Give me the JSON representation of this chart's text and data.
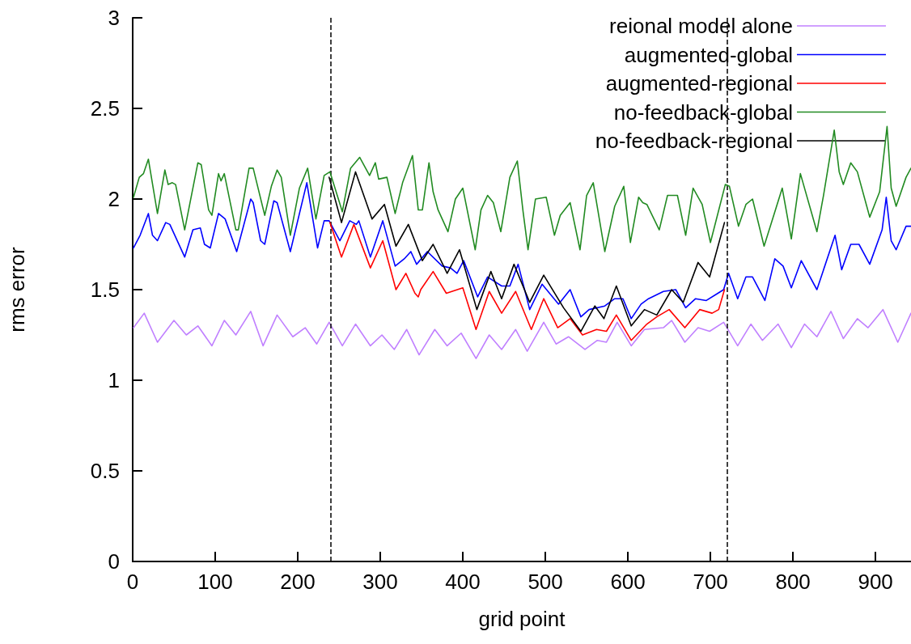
{
  "chart_data": {
    "type": "line",
    "xlabel": "grid point",
    "ylabel": "rms error",
    "xlim": [
      0,
      943
    ],
    "xticks": [
      0,
      100,
      200,
      300,
      400,
      500,
      600,
      700,
      800,
      900
    ],
    "ylim": [
      0,
      3
    ],
    "yticks": [
      0,
      0.5,
      1,
      1.5,
      2,
      2.5,
      3
    ],
    "grid": false,
    "legend": "top right",
    "marker": "none",
    "line_style": "solid",
    "ref_lines": [
      {
        "axis": "x",
        "value": 240,
        "label": null,
        "color": "#000000",
        "line_style": "dashed"
      },
      {
        "axis": "x",
        "value": 720,
        "label": null,
        "color": "#000000",
        "line_style": "dashed"
      }
    ],
    "series": [
      {
        "name": "reional model alone",
        "color": "#c080ff",
        "x": [
          1,
          14,
          30,
          50,
          65,
          79,
          96,
          111,
          125,
          143,
          158,
          175,
          194,
          209,
          223,
          238,
          254,
          270,
          288,
          302,
          317,
          332,
          347,
          366,
          381,
          398,
          416,
          432,
          447,
          464,
          478,
          498,
          513,
          528,
          548,
          563,
          574,
          587,
          604,
          620,
          643,
          653,
          669,
          685,
          699,
          716,
          733,
          749,
          763,
          782,
          798,
          814,
          829,
          846,
          861,
          878,
          891,
          909,
          927,
          943
        ],
        "values": [
          1.29,
          1.37,
          1.21,
          1.33,
          1.25,
          1.3,
          1.19,
          1.33,
          1.25,
          1.38,
          1.19,
          1.36,
          1.24,
          1.29,
          1.2,
          1.32,
          1.19,
          1.31,
          1.19,
          1.25,
          1.17,
          1.28,
          1.14,
          1.28,
          1.19,
          1.26,
          1.12,
          1.25,
          1.17,
          1.28,
          1.16,
          1.32,
          1.2,
          1.24,
          1.17,
          1.22,
          1.21,
          1.32,
          1.19,
          1.28,
          1.29,
          1.33,
          1.21,
          1.29,
          1.27,
          1.32,
          1.19,
          1.31,
          1.22,
          1.31,
          1.18,
          1.31,
          1.24,
          1.38,
          1.23,
          1.34,
          1.29,
          1.39,
          1.21,
          1.37
        ]
      },
      {
        "name": "augmented-global",
        "color": "#0000ff",
        "x": [
          1,
          9,
          19,
          24,
          30,
          40,
          45,
          63,
          73,
          82,
          87,
          94,
          104,
          112,
          126,
          143,
          146,
          155,
          160,
          171,
          175,
          191,
          211,
          224,
          232,
          238,
          251,
          263,
          271,
          274,
          288,
          303,
          318,
          329,
          337,
          344,
          357,
          375,
          385,
          393,
          401,
          418,
          430,
          447,
          457,
          467,
          481,
          496,
          516,
          530,
          543,
          553,
          572,
          584,
          594,
          604,
          616,
          625,
          643,
          658,
          670,
          682,
          695,
          709,
          716,
          722,
          733,
          743,
          751,
          766,
          778,
          788,
          798,
          810,
          829,
          851,
          859,
          870,
          880,
          893,
          908,
          913,
          919,
          925,
          937,
          943
        ],
        "values": [
          1.73,
          1.8,
          1.92,
          1.8,
          1.77,
          1.87,
          1.86,
          1.68,
          1.83,
          1.84,
          1.75,
          1.73,
          1.92,
          1.89,
          1.71,
          2.0,
          1.98,
          1.77,
          1.75,
          1.99,
          1.98,
          1.71,
          2.09,
          1.73,
          1.88,
          1.88,
          1.77,
          1.88,
          1.86,
          1.88,
          1.68,
          1.88,
          1.63,
          1.67,
          1.71,
          1.64,
          1.71,
          1.63,
          1.62,
          1.59,
          1.66,
          1.46,
          1.57,
          1.52,
          1.52,
          1.64,
          1.39,
          1.53,
          1.42,
          1.5,
          1.35,
          1.39,
          1.41,
          1.45,
          1.45,
          1.34,
          1.42,
          1.45,
          1.49,
          1.5,
          1.4,
          1.45,
          1.44,
          1.48,
          1.5,
          1.59,
          1.45,
          1.57,
          1.57,
          1.44,
          1.67,
          1.63,
          1.51,
          1.66,
          1.5,
          1.8,
          1.61,
          1.75,
          1.75,
          1.64,
          1.83,
          2.01,
          1.77,
          1.72,
          1.85,
          1.85
        ]
      },
      {
        "name": "augmented-regional",
        "color": "#ff0000",
        "x": [
          239,
          253,
          268,
          288,
          303,
          319,
          331,
          342,
          346,
          349,
          364,
          380,
          400,
          416,
          432,
          447,
          464,
          483,
          498,
          515,
          530,
          545,
          562,
          574,
          586,
          604,
          623,
          635,
          650,
          669,
          687,
          702,
          710,
          717
        ],
        "values": [
          1.87,
          1.68,
          1.86,
          1.62,
          1.77,
          1.5,
          1.59,
          1.48,
          1.46,
          1.5,
          1.6,
          1.48,
          1.51,
          1.28,
          1.49,
          1.37,
          1.49,
          1.28,
          1.45,
          1.29,
          1.34,
          1.25,
          1.28,
          1.27,
          1.36,
          1.22,
          1.31,
          1.35,
          1.39,
          1.29,
          1.39,
          1.37,
          1.39,
          1.5
        ]
      },
      {
        "name": "no-feedback-global",
        "color": "#228b22",
        "x": [
          1,
          8,
          13,
          19,
          30,
          39,
          43,
          48,
          52,
          63,
          79,
          83,
          92,
          96,
          104,
          107,
          111,
          125,
          128,
          141,
          146,
          160,
          168,
          175,
          180,
          191,
          202,
          212,
          222,
          232,
          239,
          254,
          264,
          275,
          287,
          294,
          298,
          308,
          318,
          327,
          339,
          346,
          351,
          359,
          364,
          370,
          382,
          391,
          400,
          415,
          422,
          430,
          437,
          446,
          457,
          466,
          473,
          479,
          488,
          501,
          511,
          518,
          530,
          542,
          550,
          558,
          572,
          584,
          595,
          603,
          613,
          618,
          623,
          638,
          648,
          660,
          670,
          679,
          690,
          700,
          718,
          723,
          734,
          743,
          751,
          765,
          787,
          798,
          809,
          829,
          837,
          850,
          856,
          861,
          870,
          878,
          893,
          905,
          914,
          919,
          925,
          937,
          943
        ],
        "values": [
          2.01,
          2.12,
          2.14,
          2.22,
          1.92,
          2.16,
          2.08,
          2.09,
          2.08,
          1.83,
          2.2,
          2.19,
          1.94,
          1.91,
          2.14,
          2.1,
          2.14,
          1.83,
          1.83,
          2.17,
          2.17,
          1.91,
          2.07,
          2.16,
          2.12,
          1.8,
          2.06,
          2.17,
          1.89,
          2.13,
          2.15,
          1.93,
          2.17,
          2.23,
          2.13,
          2.2,
          2.11,
          2.12,
          1.92,
          2.09,
          2.24,
          1.94,
          1.94,
          2.2,
          2.04,
          1.94,
          1.82,
          2.0,
          2.06,
          1.72,
          1.94,
          2.02,
          1.98,
          1.82,
          2.12,
          2.21,
          1.93,
          1.72,
          2.0,
          2.01,
          1.8,
          1.91,
          1.98,
          1.72,
          2.02,
          2.09,
          1.71,
          1.96,
          2.07,
          1.76,
          2.01,
          1.98,
          1.97,
          1.83,
          2.02,
          2.02,
          1.8,
          2.06,
          1.97,
          1.76,
          2.08,
          2.07,
          1.85,
          1.97,
          2.0,
          1.74,
          2.06,
          1.78,
          2.14,
          1.82,
          2.02,
          2.38,
          2.15,
          2.08,
          2.2,
          2.15,
          1.9,
          2.04,
          2.4,
          2.06,
          1.96,
          2.12,
          2.17
        ]
      },
      {
        "name": "no-feedback-regional",
        "color": "#000000",
        "x": [
          238,
          253,
          270,
          290,
          305,
          319,
          334,
          351,
          364,
          381,
          396,
          417,
          434,
          447,
          462,
          481,
          498,
          522,
          543,
          560,
          571,
          586,
          604,
          620,
          635,
          653,
          667,
          685,
          699,
          717
        ],
        "values": [
          2.12,
          1.87,
          2.15,
          1.89,
          1.97,
          1.74,
          1.86,
          1.66,
          1.75,
          1.59,
          1.72,
          1.39,
          1.6,
          1.45,
          1.64,
          1.43,
          1.58,
          1.4,
          1.27,
          1.41,
          1.34,
          1.52,
          1.3,
          1.39,
          1.36,
          1.5,
          1.43,
          1.65,
          1.57,
          1.87
        ]
      }
    ]
  }
}
